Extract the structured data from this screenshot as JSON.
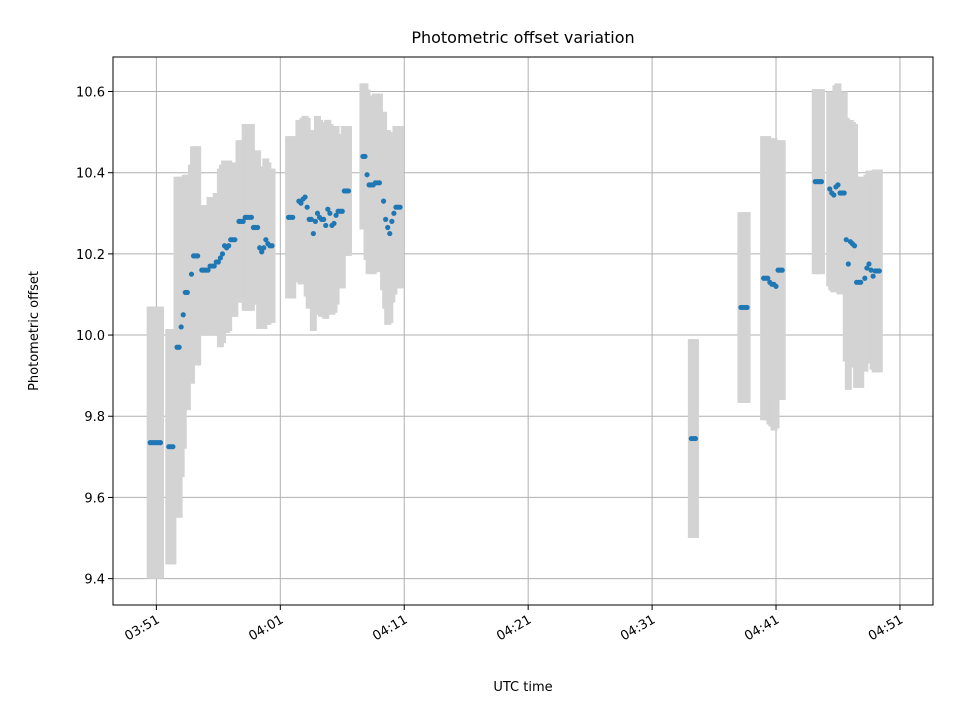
{
  "chart_data": {
    "type": "scatter",
    "title": "Photometric offset variation",
    "xlabel": "UTC time",
    "ylabel": "Photometric offset",
    "x_domain": [
      "03:47:30",
      "04:53:40"
    ],
    "ylim": [
      9.335,
      10.685
    ],
    "grid": true,
    "legend": "none",
    "x_ticks": [
      "03:51",
      "04:01",
      "04:11",
      "04:21",
      "04:31",
      "04:41",
      "04:51"
    ],
    "y_ticks": [
      9.4,
      9.6,
      9.8,
      10.0,
      10.2,
      10.4,
      10.6
    ],
    "y_tick_labels": [
      "9.4",
      "9.6",
      "9.8",
      "10.0",
      "10.2",
      "10.4",
      "10.6"
    ],
    "colors": {
      "point": "#1f77b4",
      "errorbar": "#d3d3d3",
      "grid": "#b0b0b0"
    },
    "series": [
      {
        "values": [
          {
            "x": "03:50:30",
            "y": 9.735,
            "err": 0.335
          },
          {
            "x": "03:50:40",
            "y": 9.735,
            "err": 0.335
          },
          {
            "x": "03:50:50",
            "y": 9.735,
            "err": 0.335
          },
          {
            "x": "03:51:00",
            "y": 9.735,
            "err": 0.335
          },
          {
            "x": "03:51:10",
            "y": 9.735,
            "err": 0.335
          },
          {
            "x": "03:51:20",
            "y": 9.735,
            "err": 0.335
          },
          {
            "x": "03:52:00",
            "y": 9.725,
            "err": 0.29
          },
          {
            "x": "03:52:10",
            "y": 9.725,
            "err": 0.29
          },
          {
            "x": "03:52:20",
            "y": 9.725,
            "err": 0.29
          },
          {
            "x": "03:52:40",
            "y": 9.97,
            "err": 0.42
          },
          {
            "x": "03:52:50",
            "y": 9.97,
            "err": 0.42
          },
          {
            "x": "03:53:00",
            "y": 10.02,
            "err": 0.37
          },
          {
            "x": "03:53:10",
            "y": 10.05,
            "err": 0.33
          },
          {
            "x": "03:53:20",
            "y": 10.105,
            "err": 0.29
          },
          {
            "x": "03:53:30",
            "y": 10.105,
            "err": 0.29
          },
          {
            "x": "03:53:50",
            "y": 10.15,
            "err": 0.27
          },
          {
            "x": "03:54:00",
            "y": 10.195,
            "err": 0.27
          },
          {
            "x": "03:54:10",
            "y": 10.195,
            "err": 0.27
          },
          {
            "x": "03:54:20",
            "y": 10.195,
            "err": 0.27
          },
          {
            "x": "03:54:40",
            "y": 10.16,
            "err": 0.16
          },
          {
            "x": "03:54:50",
            "y": 10.16,
            "err": 0.16
          },
          {
            "x": "03:55:00",
            "y": 10.16,
            "err": 0.16
          },
          {
            "x": "03:55:10",
            "y": 10.16,
            "err": 0.16
          },
          {
            "x": "03:55:20",
            "y": 10.17,
            "err": 0.17
          },
          {
            "x": "03:55:30",
            "y": 10.17,
            "err": 0.17
          },
          {
            "x": "03:55:40",
            "y": 10.17,
            "err": 0.17
          },
          {
            "x": "03:55:50",
            "y": 10.18,
            "err": 0.17
          },
          {
            "x": "03:56:00",
            "y": 10.18,
            "err": 0.17
          },
          {
            "x": "03:56:10",
            "y": 10.19,
            "err": 0.22
          },
          {
            "x": "03:56:20",
            "y": 10.2,
            "err": 0.22
          },
          {
            "x": "03:56:30",
            "y": 10.22,
            "err": 0.21
          },
          {
            "x": "03:56:40",
            "y": 10.215,
            "err": 0.21
          },
          {
            "x": "03:56:50",
            "y": 10.22,
            "err": 0.21
          },
          {
            "x": "03:57:00",
            "y": 10.235,
            "err": 0.19
          },
          {
            "x": "03:57:10",
            "y": 10.235,
            "err": 0.19
          },
          {
            "x": "03:57:20",
            "y": 10.235,
            "err": 0.19
          },
          {
            "x": "03:57:40",
            "y": 10.28,
            "err": 0.2
          },
          {
            "x": "03:57:50",
            "y": 10.28,
            "err": 0.2
          },
          {
            "x": "03:58:00",
            "y": 10.28,
            "err": 0.2
          },
          {
            "x": "03:58:10",
            "y": 10.29,
            "err": 0.23
          },
          {
            "x": "03:58:20",
            "y": 10.29,
            "err": 0.23
          },
          {
            "x": "03:58:30",
            "y": 10.29,
            "err": 0.23
          },
          {
            "x": "03:58:40",
            "y": 10.29,
            "err": 0.23
          },
          {
            "x": "03:58:50",
            "y": 10.265,
            "err": 0.19
          },
          {
            "x": "03:59:00",
            "y": 10.265,
            "err": 0.19
          },
          {
            "x": "03:59:10",
            "y": 10.265,
            "err": 0.19
          },
          {
            "x": "03:59:20",
            "y": 10.215,
            "err": 0.2
          },
          {
            "x": "03:59:30",
            "y": 10.205,
            "err": 0.19
          },
          {
            "x": "03:59:40",
            "y": 10.215,
            "err": 0.2
          },
          {
            "x": "03:59:50",
            "y": 10.235,
            "err": 0.2
          },
          {
            "x": "04:00:00",
            "y": 10.225,
            "err": 0.2
          },
          {
            "x": "04:00:10",
            "y": 10.22,
            "err": 0.19
          },
          {
            "x": "04:00:20",
            "y": 10.22,
            "err": 0.19
          },
          {
            "x": "04:01:40",
            "y": 10.29,
            "err": 0.2
          },
          {
            "x": "04:01:50",
            "y": 10.29,
            "err": 0.2
          },
          {
            "x": "04:02:00",
            "y": 10.29,
            "err": 0.2
          },
          {
            "x": "04:02:30",
            "y": 10.33,
            "err": 0.2
          },
          {
            "x": "04:02:40",
            "y": 10.325,
            "err": 0.2
          },
          {
            "x": "04:02:50",
            "y": 10.335,
            "err": 0.2
          },
          {
            "x": "04:03:00",
            "y": 10.34,
            "err": 0.2
          },
          {
            "x": "04:03:10",
            "y": 10.315,
            "err": 0.22
          },
          {
            "x": "04:03:20",
            "y": 10.285,
            "err": 0.22
          },
          {
            "x": "04:03:30",
            "y": 10.285,
            "err": 0.22
          },
          {
            "x": "04:03:40",
            "y": 10.25,
            "err": 0.24
          },
          {
            "x": "04:03:50",
            "y": 10.28,
            "err": 0.22
          },
          {
            "x": "04:04:00",
            "y": 10.3,
            "err": 0.24
          },
          {
            "x": "04:04:10",
            "y": 10.29,
            "err": 0.24
          },
          {
            "x": "04:04:20",
            "y": 10.285,
            "err": 0.24
          },
          {
            "x": "04:04:30",
            "y": 10.285,
            "err": 0.24
          },
          {
            "x": "04:04:40",
            "y": 10.27,
            "err": 0.23
          },
          {
            "x": "04:04:50",
            "y": 10.31,
            "err": 0.22
          },
          {
            "x": "04:05:00",
            "y": 10.3,
            "err": 0.22
          },
          {
            "x": "04:05:10",
            "y": 10.27,
            "err": 0.22
          },
          {
            "x": "04:05:20",
            "y": 10.275,
            "err": 0.22
          },
          {
            "x": "04:05:30",
            "y": 10.295,
            "err": 0.22
          },
          {
            "x": "04:05:40",
            "y": 10.305,
            "err": 0.19
          },
          {
            "x": "04:05:50",
            "y": 10.305,
            "err": 0.19
          },
          {
            "x": "04:06:00",
            "y": 10.305,
            "err": 0.19
          },
          {
            "x": "04:06:10",
            "y": 10.355,
            "err": 0.16
          },
          {
            "x": "04:06:20",
            "y": 10.355,
            "err": 0.16
          },
          {
            "x": "04:06:30",
            "y": 10.355,
            "err": 0.16
          },
          {
            "x": "04:07:40",
            "y": 10.44,
            "err": 0.18
          },
          {
            "x": "04:07:50",
            "y": 10.44,
            "err": 0.18
          },
          {
            "x": "04:08:00",
            "y": 10.395,
            "err": 0.21
          },
          {
            "x": "04:08:10",
            "y": 10.37,
            "err": 0.22
          },
          {
            "x": "04:08:20",
            "y": 10.37,
            "err": 0.22
          },
          {
            "x": "04:08:30",
            "y": 10.37,
            "err": 0.22
          },
          {
            "x": "04:08:40",
            "y": 10.375,
            "err": 0.22
          },
          {
            "x": "04:08:50",
            "y": 10.375,
            "err": 0.22
          },
          {
            "x": "04:09:00",
            "y": 10.375,
            "err": 0.22
          },
          {
            "x": "04:09:20",
            "y": 10.33,
            "err": 0.22
          },
          {
            "x": "04:09:30",
            "y": 10.285,
            "err": 0.22
          },
          {
            "x": "04:09:40",
            "y": 10.265,
            "err": 0.24
          },
          {
            "x": "04:09:50",
            "y": 10.25,
            "err": 0.22
          },
          {
            "x": "04:10:00",
            "y": 10.28,
            "err": 0.2
          },
          {
            "x": "04:10:10",
            "y": 10.3,
            "err": 0.2
          },
          {
            "x": "04:10:20",
            "y": 10.315,
            "err": 0.2
          },
          {
            "x": "04:10:30",
            "y": 10.315,
            "err": 0.2
          },
          {
            "x": "04:10:40",
            "y": 10.315,
            "err": 0.2
          },
          {
            "x": "04:34:10",
            "y": 9.745,
            "err": 0.245
          },
          {
            "x": "04:34:20",
            "y": 9.745,
            "err": 0.245
          },
          {
            "x": "04:34:30",
            "y": 9.745,
            "err": 0.245
          },
          {
            "x": "04:38:10",
            "y": 10.068,
            "err": 0.235
          },
          {
            "x": "04:38:20",
            "y": 10.068,
            "err": 0.235
          },
          {
            "x": "04:38:30",
            "y": 10.068,
            "err": 0.235
          },
          {
            "x": "04:38:40",
            "y": 10.068,
            "err": 0.235
          },
          {
            "x": "04:40:00",
            "y": 10.14,
            "err": 0.35
          },
          {
            "x": "04:40:10",
            "y": 10.14,
            "err": 0.35
          },
          {
            "x": "04:40:20",
            "y": 10.14,
            "err": 0.35
          },
          {
            "x": "04:40:30",
            "y": 10.13,
            "err": 0.35
          },
          {
            "x": "04:40:40",
            "y": 10.125,
            "err": 0.35
          },
          {
            "x": "04:40:50",
            "y": 10.125,
            "err": 0.36
          },
          {
            "x": "04:41:00",
            "y": 10.12,
            "err": 0.35
          },
          {
            "x": "04:41:10",
            "y": 10.16,
            "err": 0.32
          },
          {
            "x": "04:41:20",
            "y": 10.16,
            "err": 0.32
          },
          {
            "x": "04:41:30",
            "y": 10.16,
            "err": 0.32
          },
          {
            "x": "04:44:10",
            "y": 10.378,
            "err": 0.228
          },
          {
            "x": "04:44:20",
            "y": 10.378,
            "err": 0.228
          },
          {
            "x": "04:44:30",
            "y": 10.378,
            "err": 0.228
          },
          {
            "x": "04:44:40",
            "y": 10.378,
            "err": 0.228
          },
          {
            "x": "04:45:20",
            "y": 10.36,
            "err": 0.24
          },
          {
            "x": "04:45:30",
            "y": 10.35,
            "err": 0.24
          },
          {
            "x": "04:45:40",
            "y": 10.345,
            "err": 0.24
          },
          {
            "x": "04:45:50",
            "y": 10.365,
            "err": 0.25
          },
          {
            "x": "04:46:00",
            "y": 10.37,
            "err": 0.25
          },
          {
            "x": "04:46:10",
            "y": 10.35,
            "err": 0.25
          },
          {
            "x": "04:46:20",
            "y": 10.35,
            "err": 0.25
          },
          {
            "x": "04:46:30",
            "y": 10.35,
            "err": 0.25
          },
          {
            "x": "04:46:40",
            "y": 10.235,
            "err": 0.3
          },
          {
            "x": "04:46:50",
            "y": 10.175,
            "err": 0.31
          },
          {
            "x": "04:47:00",
            "y": 10.23,
            "err": 0.3
          },
          {
            "x": "04:47:10",
            "y": 10.225,
            "err": 0.3
          },
          {
            "x": "04:47:20",
            "y": 10.22,
            "err": 0.3
          },
          {
            "x": "04:47:30",
            "y": 10.13,
            "err": 0.26
          },
          {
            "x": "04:47:40",
            "y": 10.13,
            "err": 0.26
          },
          {
            "x": "04:47:50",
            "y": 10.13,
            "err": 0.26
          },
          {
            "x": "04:48:10",
            "y": 10.14,
            "err": 0.23
          },
          {
            "x": "04:48:20",
            "y": 10.165,
            "err": 0.23
          },
          {
            "x": "04:48:30",
            "y": 10.175,
            "err": 0.23
          },
          {
            "x": "04:48:40",
            "y": 10.16,
            "err": 0.23
          },
          {
            "x": "04:48:50",
            "y": 10.145,
            "err": 0.23
          },
          {
            "x": "04:49:00",
            "y": 10.158,
            "err": 0.25
          },
          {
            "x": "04:49:10",
            "y": 10.158,
            "err": 0.25
          },
          {
            "x": "04:49:20",
            "y": 10.158,
            "err": 0.25
          }
        ]
      }
    ]
  }
}
